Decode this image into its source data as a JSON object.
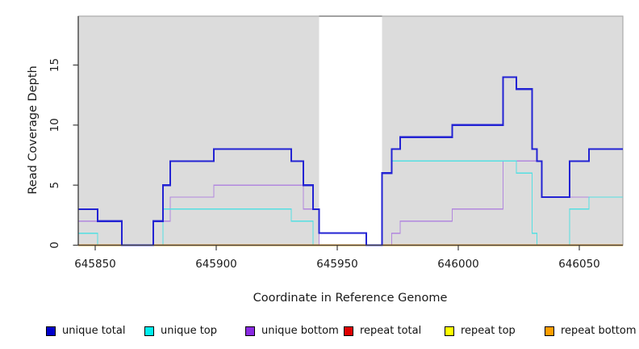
{
  "figure": {
    "title": "",
    "xlabel": "Coordinate in Reference Genome",
    "ylabel": "Read Coverage Depth"
  },
  "chart_data": {
    "type": "line",
    "subtype": "step",
    "title": "",
    "xlabel": "Coordinate in Reference Genome",
    "ylabel": "Read Coverage Depth",
    "xlim": [
      645843,
      646068
    ],
    "ylim": [
      0,
      19.07
    ],
    "x_ticks": [
      645850,
      645900,
      645950,
      646000,
      646050
    ],
    "y_ticks": [
      0,
      5,
      10,
      15
    ],
    "grid": false,
    "legend_position": "bottom",
    "panel_bg": "#DCDCDC",
    "axis_color": "#3D3D3D",
    "panel_border_color": "#ABABAB",
    "tick_label_color": "#1A1A1A",
    "gap_region": {
      "start": 645942.5,
      "end": 645968.5,
      "color": "#FFFFFF",
      "top_edge_color": "#8C8C8C"
    },
    "series": [
      {
        "name": "unique total",
        "color": "#2323D3",
        "legend_color": "#0000CC",
        "width": 2.2,
        "z": 6,
        "steps": [
          [
            645843,
            3
          ],
          [
            645851,
            2
          ],
          [
            645861,
            0
          ],
          [
            645874,
            2
          ],
          [
            645878,
            5
          ],
          [
            645881,
            7
          ],
          [
            645899,
            8
          ],
          [
            645931,
            7
          ],
          [
            645936,
            5
          ],
          [
            645940,
            3
          ],
          [
            645942.5,
            1
          ],
          [
            645962,
            0
          ],
          [
            645968.5,
            6
          ],
          [
            645972.5,
            8
          ],
          [
            645976,
            9
          ],
          [
            645997.5,
            10
          ],
          [
            646018.5,
            14
          ],
          [
            646024,
            13
          ],
          [
            646030.5,
            8
          ],
          [
            646032.5,
            7
          ],
          [
            646034.5,
            4
          ],
          [
            646046,
            7
          ],
          [
            646054,
            8
          ]
        ]
      },
      {
        "name": "unique top",
        "color": "#55DFE2",
        "legend_color": "#00EEEE",
        "width": 1.4,
        "z": 4,
        "steps": [
          [
            645843,
            1
          ],
          [
            645851,
            0
          ],
          [
            645878,
            3
          ],
          [
            645931,
            2
          ],
          [
            645940,
            0
          ],
          [
            645968.5,
            6
          ],
          [
            645972.5,
            7
          ],
          [
            646024,
            6
          ],
          [
            646030.5,
            1
          ],
          [
            646032.5,
            0
          ],
          [
            646046,
            3
          ],
          [
            646054,
            4
          ]
        ]
      },
      {
        "name": "unique bottom",
        "color": "#B288DE",
        "legend_color": "#8A2BE2",
        "width": 1.4,
        "z": 3,
        "steps": [
          [
            645843,
            2
          ],
          [
            645861,
            0
          ],
          [
            645874,
            2
          ],
          [
            645881,
            4
          ],
          [
            645899,
            5
          ],
          [
            645936,
            3
          ],
          [
            645942.5,
            0
          ],
          [
            645972.5,
            1
          ],
          [
            645976,
            2
          ],
          [
            645997.5,
            3
          ],
          [
            646018.5,
            7
          ],
          [
            646034.5,
            4
          ]
        ]
      },
      {
        "name": "repeat total",
        "color": "#DD0000",
        "legend_color": "#E00000",
        "width": 1.4,
        "z": 1,
        "steps": [
          [
            645843,
            0
          ]
        ]
      },
      {
        "name": "repeat top",
        "color": "#FFFF00",
        "legend_color": "#FFFF00",
        "width": 1.4,
        "z": 2,
        "steps": [
          [
            645843,
            0
          ]
        ]
      },
      {
        "name": "repeat bottom",
        "color": "#FF9800",
        "legend_color": "#FF9E00",
        "width": 1.7,
        "z": 5,
        "steps": [
          [
            645843,
            0
          ]
        ]
      }
    ]
  }
}
